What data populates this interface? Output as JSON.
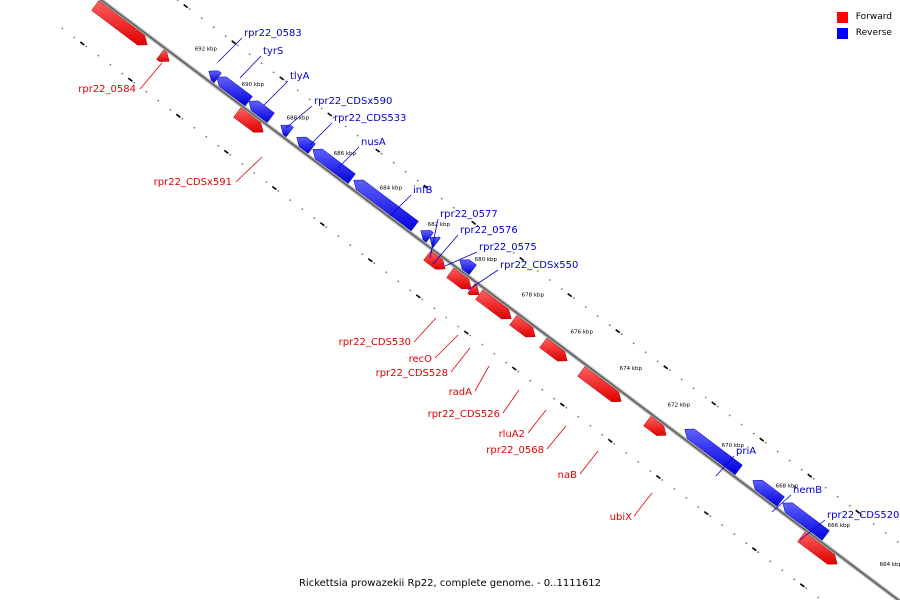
{
  "legend": {
    "forward_label": "Forward",
    "reverse_label": "Reverse",
    "forward_color": "#ff0000",
    "reverse_color": "#0000ff"
  },
  "caption": "Rickettsia prowazekii Rp22, complete genome. - 0..1111612",
  "ticks": [
    "692 kbp",
    "690 kbp",
    "688 kbp",
    "686 kbp",
    "684 kbp",
    "682 kbp",
    "680 kbp",
    "678 kbp",
    "676 kbp",
    "674 kbp",
    "672 kbp",
    "670 kbp",
    "668 kbp",
    "666 kbp",
    "664 kbp"
  ],
  "forward_genes": [
    "rpr22_0584",
    "rpr22_CDSx591",
    "rpr22_CDS530",
    "recO",
    "rpr22_CDS528",
    "radA",
    "rpr22_CDS526",
    "rluA2",
    "rpr22_0568",
    "naB",
    "ubiX"
  ],
  "reverse_genes": [
    "rpr22_0583",
    "tyrS",
    "tlyA",
    "rpr22_CDSx590",
    "rpr22_CDS533",
    "nusA",
    "infB",
    "rpr22_0577",
    "rpr22_0576",
    "rpr22_0575",
    "rpr22_CDSx550",
    "priA",
    "hemB",
    "rpr22_CDS520"
  ]
}
